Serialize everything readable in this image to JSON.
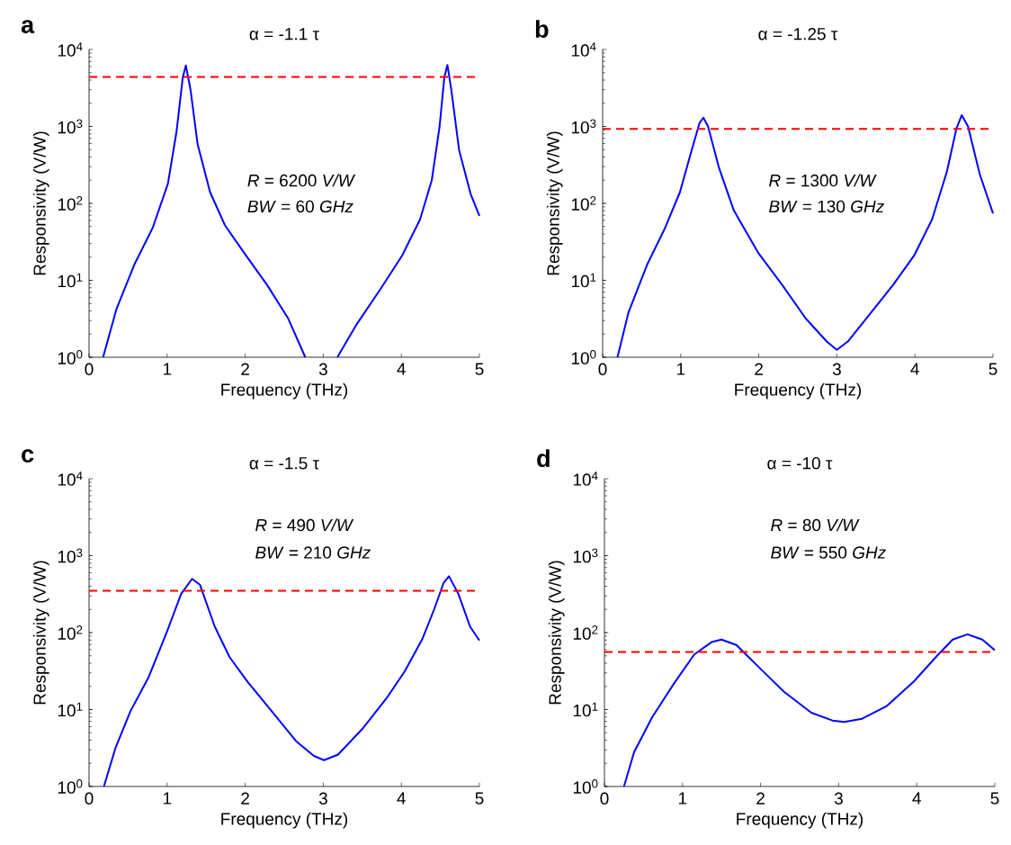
{
  "chart_data": [
    {
      "type": "line",
      "title": "α = -1.1 τ",
      "xlabel": "Frequency (THz)",
      "ylabel": "Responsivity (V/W)",
      "annotations": [
        "a",
        "*R* = 6200 *V/W*",
        "*BW* = 60  *GHz*"
      ],
      "log": "y",
      "marker": "none",
      "line_style": "solid",
      "xlim": [
        0,
        5
      ],
      "xticks": [
        0,
        1,
        2,
        3,
        4,
        5
      ],
      "ylim": [
        1,
        10000
      ],
      "yticks": [
        {
          "value": 1,
          "label": "10$^{0}$"
        },
        {
          "value": 10,
          "label": "10$^{1}$"
        },
        {
          "value": 100,
          "label": "10$^{2}$"
        },
        {
          "value": 1000,
          "label": "10$^{3}$"
        },
        {
          "value": 10000,
          "label": "10$^{4}$"
        }
      ],
      "ref_lines": [
        {
          "axis": "y",
          "value": 4400,
          "color": "#ff0000",
          "line_style": "dashed"
        }
      ],
      "series": [
        {
          "color": "#0000ff",
          "x": [
            0.18,
            0.35,
            0.58,
            0.815,
            1.01,
            1.12,
            1.2,
            1.24,
            1.3,
            1.39,
            1.55,
            1.74,
            2.01,
            2.28,
            2.55,
            2.77,
            2.97,
            3.18,
            3.43,
            3.74,
            4.01,
            4.24,
            4.39,
            4.49,
            4.55,
            4.59,
            4.64,
            4.74,
            4.89,
            5.0
          ],
          "values": [
            1,
            4.2,
            16,
            48,
            180,
            850,
            4300,
            6200,
            3000,
            590,
            140,
            52,
            21,
            8.7,
            3.2,
            1,
            null,
            1,
            2.7,
            7.9,
            21,
            62,
            200,
            1000,
            4300,
            6300,
            3000,
            490,
            130,
            69
          ]
        }
      ]
    },
    {
      "type": "line",
      "title": "α = -1.25 τ",
      "xlabel": "Frequency (THz)",
      "ylabel": "Responsivity (V/W)",
      "annotations": [
        "b",
        "*R* = 1300 *V/W*",
        "*BW* = 130 *GHz*"
      ],
      "log": "y",
      "marker": "none",
      "line_style": "solid",
      "xlim": [
        0,
        5
      ],
      "xticks": [
        0,
        1,
        2,
        3,
        4,
        5
      ],
      "ylim": [
        1,
        10000
      ],
      "yticks": [
        {
          "value": 1,
          "label": "10$^{0}$"
        },
        {
          "value": 10,
          "label": "10$^{1}$"
        },
        {
          "value": 100,
          "label": "10$^{2}$"
        },
        {
          "value": 1000,
          "label": "10$^{3}$"
        },
        {
          "value": 10000,
          "label": "10$^{4}$"
        }
      ],
      "ref_lines": [
        {
          "axis": "y",
          "value": 930,
          "color": "#ff0000",
          "line_style": "dashed"
        }
      ],
      "series": [
        {
          "color": "#0000ff",
          "x": [
            0.19,
            0.33,
            0.57,
            0.8,
            0.99,
            1.14,
            1.24,
            1.29,
            1.35,
            1.49,
            1.68,
            1.99,
            2.3,
            2.6,
            2.87,
            3.0,
            3.14,
            3.41,
            3.72,
            3.99,
            4.22,
            4.41,
            4.53,
            4.6,
            4.68,
            4.83,
            5.0
          ],
          "values": [
            1,
            3.8,
            16,
            48,
            140,
            490,
            1100,
            1300,
            1000,
            290,
            81,
            23,
            8.7,
            3.2,
            1.6,
            1.25,
            1.6,
            3.5,
            8.7,
            21,
            62,
            260,
            930,
            1400,
            1000,
            240,
            74
          ]
        }
      ]
    },
    {
      "type": "line",
      "title": "α = -1.5 τ",
      "xlabel": "Frequency (THz)",
      "ylabel": "Responsivity (V/W)",
      "annotations": [
        "c",
        "*R* = 490  *V/W*",
        "*BW* = 210 *GHz*"
      ],
      "log": "y",
      "marker": "none",
      "line_style": "solid",
      "xlim": [
        0,
        5
      ],
      "xticks": [
        0,
        1,
        2,
        3,
        4,
        5
      ],
      "ylim": [
        1,
        10000
      ],
      "yticks": [
        {
          "value": 1,
          "label": "10$^{0}$"
        },
        {
          "value": 10,
          "label": "10$^{1}$"
        },
        {
          "value": 100,
          "label": "10$^{2}$"
        },
        {
          "value": 1000,
          "label": "10$^{3}$"
        },
        {
          "value": 10000,
          "label": "10$^{4}$"
        }
      ],
      "ref_lines": [
        {
          "axis": "y",
          "value": 350,
          "color": "#ff0000",
          "line_style": "dashed"
        }
      ],
      "series": [
        {
          "color": "#0000ff",
          "x": [
            0.19,
            0.34,
            0.53,
            0.76,
            0.99,
            1.18,
            1.32,
            1.42,
            1.61,
            1.8,
            2.03,
            2.34,
            2.65,
            2.88,
            3.01,
            3.19,
            3.5,
            3.81,
            4.04,
            4.27,
            4.42,
            4.54,
            4.61,
            4.73,
            4.88,
            5.0
          ],
          "values": [
            1,
            3.2,
            9.5,
            26,
            98,
            320,
            500,
            420,
            120,
            48,
            23,
            9.5,
            3.9,
            2.5,
            2.2,
            2.6,
            5.6,
            14,
            31,
            83,
            200,
            440,
            540,
            320,
            120,
            79
          ]
        }
      ]
    },
    {
      "type": "line",
      "title": "α = -10 τ",
      "xlabel": "Frequency (THz)",
      "ylabel": "Responsivity (V/W)",
      "annotations": [
        "d",
        "*R* =   80   *V/W*",
        "*BW* = 550  *GHz*"
      ],
      "log": "y",
      "marker": "none",
      "line_style": "solid",
      "xlim": [
        0,
        5
      ],
      "xticks": [
        0,
        1,
        2,
        3,
        4,
        5
      ],
      "ylim": [
        1,
        10000
      ],
      "yticks": [
        {
          "value": 1,
          "label": "10$^{0}$"
        },
        {
          "value": 10,
          "label": "10$^{1}$"
        },
        {
          "value": 100,
          "label": "10$^{2}$"
        },
        {
          "value": 1000,
          "label": "10$^{3}$"
        },
        {
          "value": 10000,
          "label": "10$^{4}$"
        }
      ],
      "ref_lines": [
        {
          "axis": "y",
          "value": 56,
          "color": "#ff0000",
          "line_style": "dashed"
        }
      ],
      "series": [
        {
          "color": "#0000ff",
          "x": [
            0.25,
            0.38,
            0.61,
            0.88,
            1.15,
            1.38,
            1.5,
            1.69,
            1.96,
            2.3,
            2.65,
            2.92,
            3.07,
            3.3,
            3.61,
            3.96,
            4.26,
            4.46,
            4.65,
            4.84,
            5.0
          ],
          "values": [
            1,
            2.8,
            7.9,
            21,
            52,
            76,
            81,
            69,
            37,
            17,
            9.1,
            7.2,
            6.9,
            7.6,
            11,
            23,
            50,
            81,
            95,
            81,
            59
          ]
        }
      ]
    }
  ]
}
